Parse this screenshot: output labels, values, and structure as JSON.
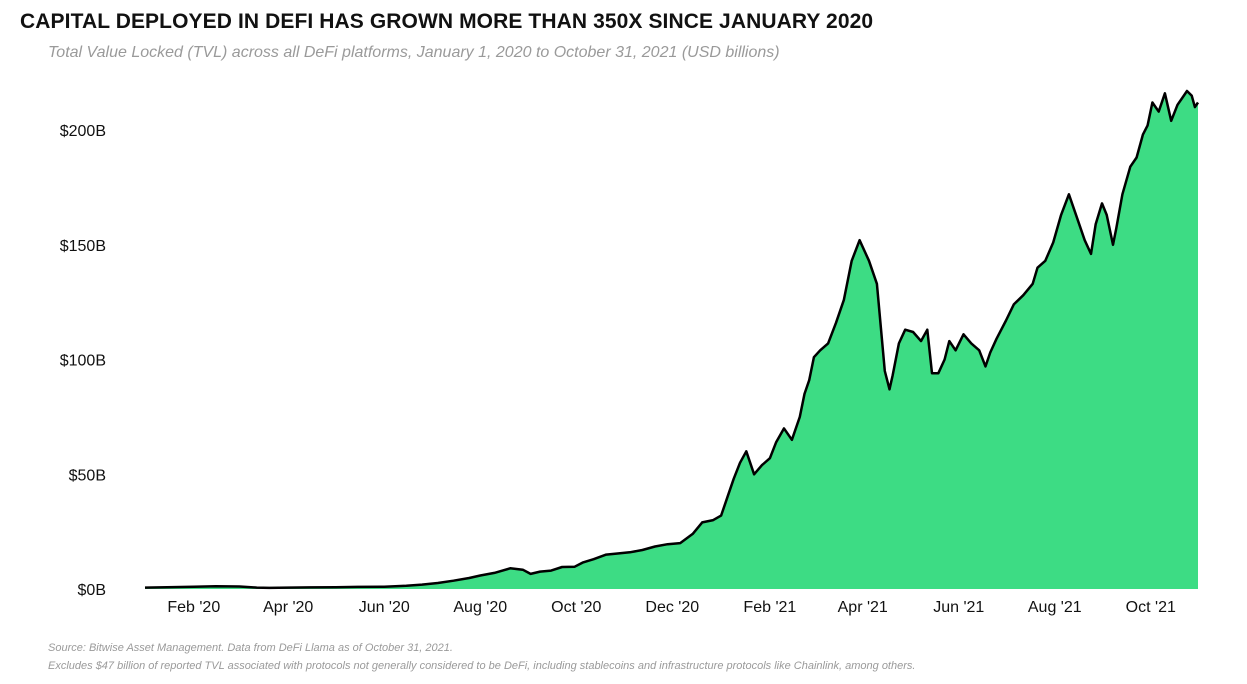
{
  "title": "CAPITAL DEPLOYED IN DEFI HAS GROWN MORE THAN 350X SINCE JANUARY 2020",
  "subtitle": "Total Value Locked (TVL) across all DeFi platforms, January 1, 2020 to October 31, 2021 (USD billions)",
  "footnotes": {
    "source": "Source: Bitwise Asset Management. Data from DeFi Llama as of October 31, 2021.",
    "note": "Excludes $47 billion of reported TVL associated with protocols not generally considered to be DeFi, including stablecoins and infrastructure protocols like Chainlink, among others."
  },
  "colors": {
    "area": "#3ddc84",
    "line": "#000000"
  },
  "chart_data": {
    "type": "area",
    "title": "CAPITAL DEPLOYED IN DEFI HAS GROWN MORE THAN 350X SINCE JANUARY 2020",
    "subtitle": "Total Value Locked (TVL) across all DeFi platforms, January 1, 2020 to October 31, 2021 (USD billions)",
    "xlabel": "",
    "ylabel": "",
    "grid": false,
    "legend": "none",
    "xlim": [
      "2020-01-01",
      "2021-10-31"
    ],
    "ylim": [
      0,
      220
    ],
    "y_ticks": [
      {
        "value": 0,
        "label": "$0B"
      },
      {
        "value": 50,
        "label": "$50B"
      },
      {
        "value": 100,
        "label": "$100B"
      },
      {
        "value": 150,
        "label": "$150B"
      },
      {
        "value": 200,
        "label": "$200B"
      }
    ],
    "x_ticks": [
      {
        "date": "2020-02-01",
        "label": "Feb '20"
      },
      {
        "date": "2020-04-01",
        "label": "Apr '20"
      },
      {
        "date": "2020-06-01",
        "label": "Jun '20"
      },
      {
        "date": "2020-08-01",
        "label": "Aug '20"
      },
      {
        "date": "2020-10-01",
        "label": "Oct '20"
      },
      {
        "date": "2020-12-01",
        "label": "Dec '20"
      },
      {
        "date": "2021-02-01",
        "label": "Feb '21"
      },
      {
        "date": "2021-04-01",
        "label": "Apr '21"
      },
      {
        "date": "2021-06-01",
        "label": "Jun '21"
      },
      {
        "date": "2021-08-01",
        "label": "Aug '21"
      },
      {
        "date": "2021-10-01",
        "label": "Oct '21"
      }
    ],
    "series": [
      {
        "name": "",
        "x": [
          "2020-01-01",
          "2020-01-15",
          "2020-02-01",
          "2020-02-15",
          "2020-03-01",
          "2020-03-12",
          "2020-03-20",
          "2020-04-01",
          "2020-04-15",
          "2020-05-01",
          "2020-05-15",
          "2020-06-01",
          "2020-06-15",
          "2020-06-25",
          "2020-07-05",
          "2020-07-15",
          "2020-07-25",
          "2020-08-01",
          "2020-08-10",
          "2020-08-20",
          "2020-08-28",
          "2020-09-02",
          "2020-09-08",
          "2020-09-15",
          "2020-09-22",
          "2020-09-30",
          "2020-10-05",
          "2020-10-12",
          "2020-10-20",
          "2020-10-28",
          "2020-11-04",
          "2020-11-12",
          "2020-11-20",
          "2020-11-28",
          "2020-12-06",
          "2020-12-14",
          "2020-12-20",
          "2020-12-27",
          "2021-01-01",
          "2021-01-05",
          "2021-01-09",
          "2021-01-13",
          "2021-01-17",
          "2021-01-22",
          "2021-01-27",
          "2021-02-01",
          "2021-02-05",
          "2021-02-10",
          "2021-02-15",
          "2021-02-20",
          "2021-02-23",
          "2021-02-26",
          "2021-03-01",
          "2021-03-05",
          "2021-03-10",
          "2021-03-15",
          "2021-03-20",
          "2021-03-25",
          "2021-03-30",
          "2021-04-05",
          "2021-04-10",
          "2021-04-15",
          "2021-04-18",
          "2021-04-20",
          "2021-04-24",
          "2021-04-28",
          "2021-05-03",
          "2021-05-08",
          "2021-05-12",
          "2021-05-15",
          "2021-05-19",
          "2021-05-23",
          "2021-05-26",
          "2021-05-30",
          "2021-06-04",
          "2021-06-09",
          "2021-06-14",
          "2021-06-18",
          "2021-06-21",
          "2021-06-25",
          "2021-07-01",
          "2021-07-06",
          "2021-07-12",
          "2021-07-18",
          "2021-07-21",
          "2021-07-26",
          "2021-07-31",
          "2021-08-05",
          "2021-08-10",
          "2021-08-15",
          "2021-08-20",
          "2021-08-24",
          "2021-08-27",
          "2021-08-31",
          "2021-09-03",
          "2021-09-07",
          "2021-09-09",
          "2021-09-13",
          "2021-09-18",
          "2021-09-22",
          "2021-09-26",
          "2021-09-29",
          "2021-10-02",
          "2021-10-06",
          "2021-10-10",
          "2021-10-14",
          "2021-10-18",
          "2021-10-21",
          "2021-10-24",
          "2021-10-27",
          "2021-10-29",
          "2021-10-31"
        ],
        "values": [
          0.6,
          0.8,
          1.0,
          1.2,
          1.1,
          0.6,
          0.5,
          0.6,
          0.7,
          0.8,
          0.9,
          1.0,
          1.4,
          1.9,
          2.6,
          3.6,
          4.8,
          5.9,
          7.0,
          9.0,
          8.4,
          6.6,
          7.6,
          8.0,
          9.6,
          9.7,
          11.5,
          13.0,
          15.0,
          15.5,
          16.0,
          17.0,
          18.5,
          19.5,
          20.0,
          24.0,
          29.0,
          30.0,
          32.0,
          40.0,
          48.0,
          55.0,
          60.0,
          50.0,
          54.0,
          57.0,
          64.0,
          70.0,
          65.0,
          75.0,
          85.0,
          91.0,
          101.0,
          104.0,
          107.0,
          116.0,
          126.0,
          143.0,
          152.0,
          143.0,
          133.0,
          95.0,
          87.0,
          93.0,
          107.0,
          113.0,
          112.0,
          108.0,
          113.0,
          94.0,
          94.0,
          100.0,
          108.0,
          104.0,
          111.0,
          107.0,
          104.0,
          97.0,
          103.0,
          109.0,
          117.0,
          124.0,
          128.0,
          133.0,
          140.0,
          143.0,
          151.0,
          163.0,
          172.0,
          162.0,
          152.0,
          146.0,
          159.0,
          168.0,
          163.0,
          150.0,
          157.0,
          172.0,
          184.0,
          188.0,
          198.0,
          202.0,
          212.0,
          208.0,
          216.0,
          204.0,
          211.0,
          214.0,
          217.0,
          215.0,
          210.0,
          212.0
        ]
      }
    ]
  }
}
